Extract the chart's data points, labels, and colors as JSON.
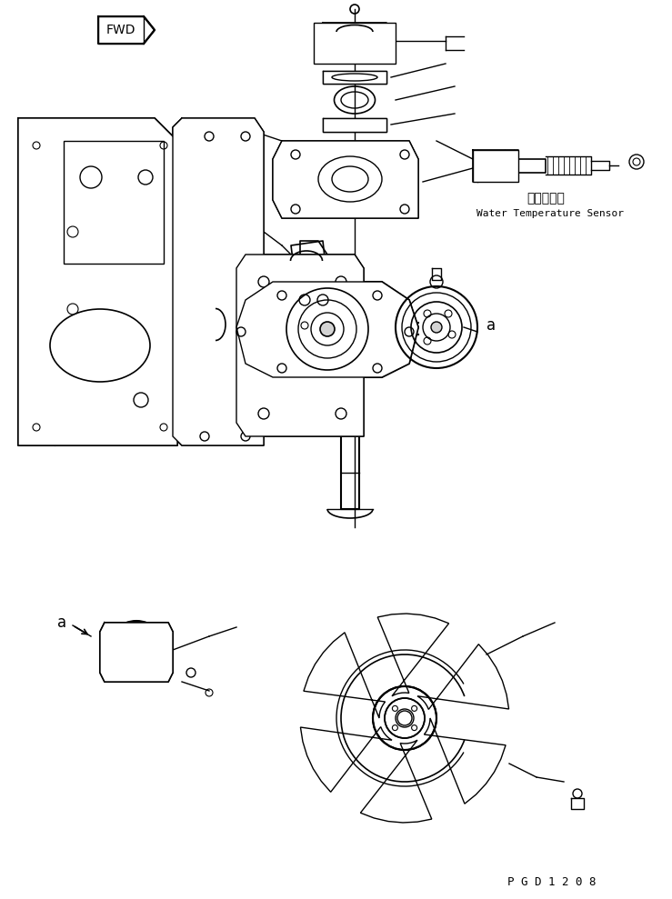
{
  "title": "",
  "background_color": "#ffffff",
  "text_water_temp_jp": "水温センサ",
  "text_water_temp_en": "Water Temperature Sensor",
  "text_fwd": "FWD",
  "text_label_a": "a",
  "text_pgd": "P G D 1 2 0 8",
  "line_color": "#000000",
  "line_width": 1.0,
  "fig_width": 7.39,
  "fig_height": 9.89
}
